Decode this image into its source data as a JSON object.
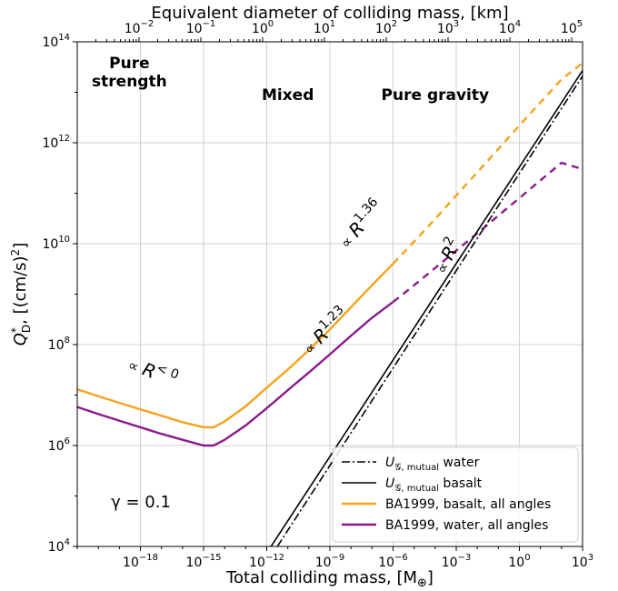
{
  "chart_data": {
    "type": "line",
    "xlabel": "Total colliding mass, [M",
    "xlabel_sub": "⊕",
    "xlabel_end": "]",
    "ylabel": "Q",
    "ylabel_sup": "*",
    "ylabel_sub": "D",
    "ylabel_end": ", [(cm/s)",
    "ylabel_sup2": "2",
    "ylabel_close": "]",
    "top_xlabel": "Equivalent diameter of colliding mass, [km]",
    "x_scale": "log",
    "y_scale": "log",
    "xlim": [
      1e-21,
      1000
    ],
    "ylim": [
      10000,
      100000000000000.0
    ],
    "top_xlim": [
      0.001,
      150000
    ],
    "grid": true,
    "x_ticks": [
      {
        "value": 1e-18,
        "base": "10",
        "exp": "−18"
      },
      {
        "value": 1e-15,
        "base": "10",
        "exp": "−15"
      },
      {
        "value": 1e-12,
        "base": "10",
        "exp": "−12"
      },
      {
        "value": 1e-09,
        "base": "10",
        "exp": "−9"
      },
      {
        "value": 1e-06,
        "base": "10",
        "exp": "−6"
      },
      {
        "value": 0.001,
        "base": "10",
        "exp": "−3"
      },
      {
        "value": 1,
        "base": "10",
        "exp": "0"
      },
      {
        "value": 1000,
        "base": "10",
        "exp": "3"
      }
    ],
    "y_ticks": [
      {
        "value": 10000,
        "base": "10",
        "exp": "4"
      },
      {
        "value": 1000000,
        "base": "10",
        "exp": "6"
      },
      {
        "value": 100000000,
        "base": "10",
        "exp": "8"
      },
      {
        "value": 10000000000,
        "base": "10",
        "exp": "10"
      },
      {
        "value": 1000000000000,
        "base": "10",
        "exp": "12"
      },
      {
        "value": 100000000000000,
        "base": "10",
        "exp": "14"
      }
    ],
    "top_ticks": [
      {
        "value": 0.01,
        "base": "10",
        "exp": "−2"
      },
      {
        "value": 0.1,
        "base": "10",
        "exp": "−1"
      },
      {
        "value": 1,
        "base": "10",
        "exp": "0"
      },
      {
        "value": 10,
        "base": "10",
        "exp": "1"
      },
      {
        "value": 100,
        "base": "10",
        "exp": "2"
      },
      {
        "value": 1000,
        "base": "10",
        "exp": "3"
      },
      {
        "value": 10000,
        "base": "10",
        "exp": "4"
      },
      {
        "value": 100000,
        "base": "10",
        "exp": "5"
      }
    ],
    "regions": [
      {
        "line1": "Pure",
        "line2": "strength",
        "x": 3e-19,
        "y": 30000000000000.0
      },
      {
        "line1": "Mixed",
        "line2": "",
        "x": 1e-11,
        "y": 7000000000000.0
      },
      {
        "line1": "Pure gravity",
        "line2": "",
        "x": 0.0001,
        "y": 7000000000000.0
      }
    ],
    "annotations": [
      {
        "prefix": "∝ ",
        "italic": "R",
        "sup": "< 0",
        "x": 3e-18,
        "y": 22000000.0,
        "angle": 21
      },
      {
        "prefix": "∝ ",
        "italic": "R",
        "sup": "1.36",
        "x": 5e-08,
        "y": 20000000000.0,
        "angle": -48
      },
      {
        "prefix": "∝ ",
        "italic": "R",
        "sup": "1.23",
        "x": 1e-09,
        "y": 150000000.0,
        "angle": -44
      },
      {
        "prefix": "∝ ",
        "italic": "R",
        "sup": "2",
        "x": 0.0007,
        "y": 5000000000.0,
        "angle": -62
      }
    ],
    "gamma_label": "γ = 0.1",
    "gamma_pos": {
      "x": 4e-20,
      "y": 60000.0
    },
    "series": [
      {
        "name": "BA1999, basalt, all angles",
        "color": "#f5a31a",
        "style": "solid",
        "x": [
          1e-21,
          1e-20,
          1e-19,
          1e-18,
          1e-17,
          1e-16,
          1e-15,
          3e-15,
          1e-14,
          1e-13,
          1e-12,
          1e-11,
          1e-10,
          1e-09,
          1e-08,
          1e-07,
          1e-06
        ],
        "y": [
          13000000,
          9500000,
          7000000,
          5200000,
          3900000,
          2900000,
          2300000,
          2300000,
          3000000,
          6000000,
          14000000,
          32000000,
          78000000,
          200000000,
          550000000,
          1500000000,
          4000000000
        ]
      },
      {
        "name": "",
        "color": "#f5a31a",
        "style": "dashed",
        "x": [
          1e-06,
          1e-05,
          0.0001,
          0.001,
          0.01,
          0.1,
          1,
          10,
          100,
          1000
        ],
        "y": [
          4000000000,
          11000000000,
          31000000000,
          90000000000,
          260000000000,
          750000000000,
          2200000000000,
          6300000000000,
          18000000000000,
          38000000000000
        ]
      },
      {
        "name": "BA1999, water, all angles",
        "color": "#8b1a8b",
        "style": "solid",
        "x": [
          1e-21,
          1e-20,
          1e-19,
          1e-18,
          1e-17,
          1e-16,
          1e-15,
          3e-15,
          1e-14,
          1e-13,
          1e-12,
          1e-11,
          1e-10,
          1e-09,
          1e-08,
          1e-07,
          1e-06
        ],
        "y": [
          5800000,
          4200000,
          3100000,
          2300000,
          1700000,
          1300000,
          1000000,
          1000000,
          1300000,
          2500000,
          5500000,
          12500000,
          28000000,
          64000000,
          150000000,
          340000000,
          700000000
        ]
      },
      {
        "name": "",
        "color": "#8b1a8b",
        "style": "dashed",
        "x": [
          1e-06,
          1e-05,
          0.0001,
          0.001,
          0.01,
          0.1,
          1,
          10,
          100,
          1000
        ],
        "y": [
          700000000,
          1500000000,
          3300000000,
          7300000000,
          16000000000,
          36000000000,
          80000000000,
          180000000000,
          400000000000,
          300000000000
        ]
      },
      {
        "name": "",
        "color": "#000000",
        "style": "solid",
        "x": [
          1.6e-12,
          1000
        ],
        "y": [
          10000,
          27000000000000
        ]
      },
      {
        "name": "",
        "color": "#000000",
        "style": "dashdot",
        "x": [
          3.2e-12,
          1000
        ],
        "y": [
          10000,
          21000000000000
        ]
      }
    ],
    "legend": {
      "placement": "lower-right",
      "entries": [
        {
          "label_main": "U",
          "label_sub": "𝒢, mutual",
          "label_rest": " water",
          "color": "#000000",
          "style": "dashdot"
        },
        {
          "label_main": "U",
          "label_sub": "𝒢, mutual",
          "label_rest": " basalt",
          "color": "#000000",
          "style": "solid"
        },
        {
          "label_main": "BA1999, basalt, all angles",
          "label_sub": "",
          "label_rest": "",
          "color": "#f5a31a",
          "style": "solid"
        },
        {
          "label_main": "BA1999, water, all angles",
          "label_sub": "",
          "label_rest": "",
          "color": "#8b1a8b",
          "style": "solid"
        }
      ]
    }
  }
}
